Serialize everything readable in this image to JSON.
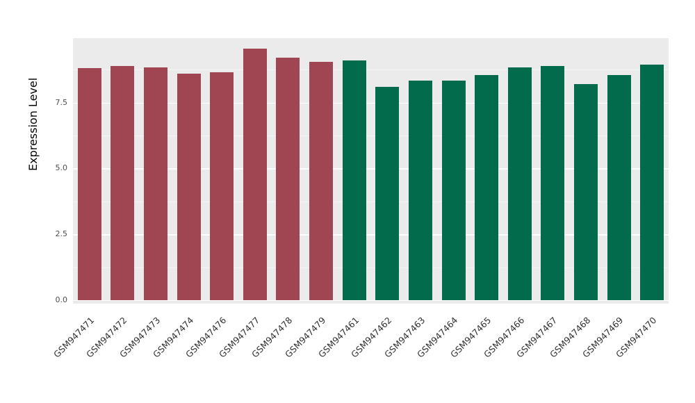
{
  "chart_data": {
    "type": "bar",
    "title": "",
    "xlabel": "",
    "ylabel": "Expression Level",
    "categories": [
      "GSM947471",
      "GSM947472",
      "GSM947473",
      "GSM947474",
      "GSM947476",
      "GSM947477",
      "GSM947478",
      "GSM947479",
      "GSM947461",
      "GSM947462",
      "GSM947463",
      "GSM947464",
      "GSM947465",
      "GSM947466",
      "GSM947467",
      "GSM947468",
      "GSM947469",
      "GSM947470"
    ],
    "values": [
      8.8,
      8.9,
      8.85,
      8.6,
      8.65,
      9.55,
      9.2,
      9.05,
      9.1,
      8.1,
      8.35,
      8.35,
      8.55,
      8.85,
      8.9,
      8.2,
      8.55,
      8.95
    ],
    "groups": [
      "red",
      "red",
      "red",
      "red",
      "red",
      "red",
      "red",
      "red",
      "green",
      "green",
      "green",
      "green",
      "green",
      "green",
      "green",
      "green",
      "green",
      "green"
    ],
    "colors": {
      "red": "#A04552",
      "green": "#016B4B"
    },
    "ylim": [
      0,
      10
    ],
    "yticks": [
      0.0,
      2.5,
      5.0,
      7.5
    ],
    "ytick_labels": [
      "0.0",
      "2.5",
      "5.0",
      "7.5"
    ],
    "yticks_minor": [
      1.25,
      3.75,
      6.25,
      8.75
    ],
    "grid": true,
    "legend_position": "none",
    "panel_background": "#EBEBEB",
    "grid_color": "#FFFFFF"
  }
}
